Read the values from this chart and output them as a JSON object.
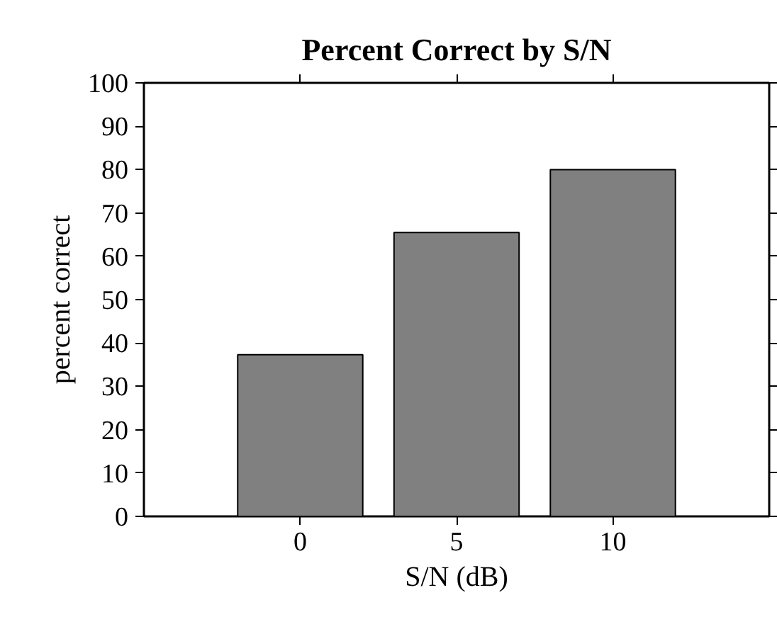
{
  "chart_data": {
    "type": "bar",
    "title": "Percent Correct by S/N",
    "xlabel": "S/N (dB)",
    "ylabel": "percent correct",
    "x": [
      0,
      5,
      10
    ],
    "values": [
      37.3,
      65.5,
      80
    ],
    "color": "#808080",
    "xlim": [
      -5,
      15
    ],
    "xticks": [
      0,
      5,
      10
    ],
    "ylim": [
      0,
      100
    ],
    "yticks": [
      0,
      10,
      20,
      30,
      40,
      50,
      60,
      70,
      80,
      90,
      100
    ],
    "grid": false
  }
}
